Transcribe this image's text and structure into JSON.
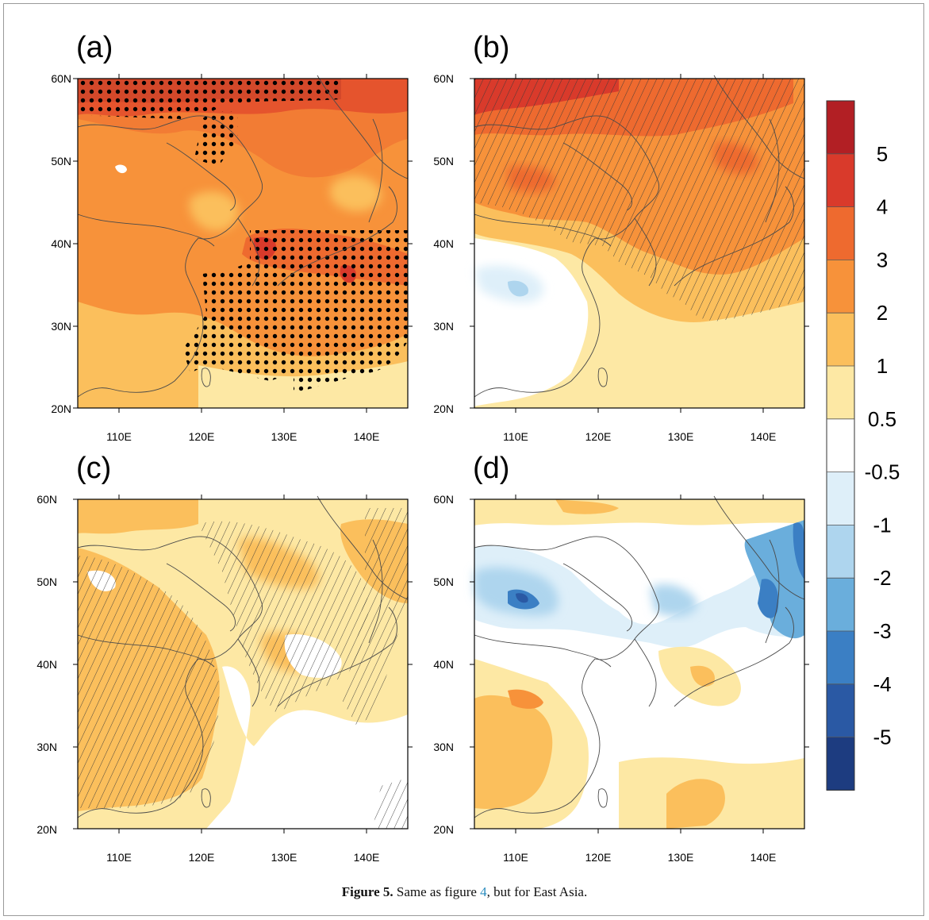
{
  "panels": [
    {
      "label": "(a)",
      "pattern": "dots"
    },
    {
      "label": "(b)",
      "pattern": "hatch"
    },
    {
      "label": "(c)",
      "pattern": "hatch"
    },
    {
      "label": "(d)",
      "pattern": "none"
    }
  ],
  "axes": {
    "lat_ticks": [
      "60N",
      "50N",
      "40N",
      "30N",
      "20N"
    ],
    "lon_ticks": [
      "110E",
      "120E",
      "130E",
      "140E"
    ],
    "lat_range": [
      20,
      60
    ],
    "lon_range": [
      105,
      145
    ]
  },
  "colorbar": {
    "labels": [
      "5",
      "4",
      "3",
      "2",
      "1",
      "0.5",
      "-0.5",
      "-1",
      "-2",
      "-3",
      "-4",
      "-5"
    ],
    "colors": [
      "#b21f24",
      "#d93a2b",
      "#ee6a2f",
      "#f7923a",
      "#fbbf5c",
      "#fde8a4",
      "#ffffff",
      "#deeff9",
      "#aed5ee",
      "#6aaedc",
      "#3b7fc4",
      "#2a59a4",
      "#1d3c80"
    ]
  },
  "caption": {
    "label": "Figure 5.",
    "text_before": " Same as figure ",
    "ref": "4",
    "text_after": ", but for East Asia."
  }
}
